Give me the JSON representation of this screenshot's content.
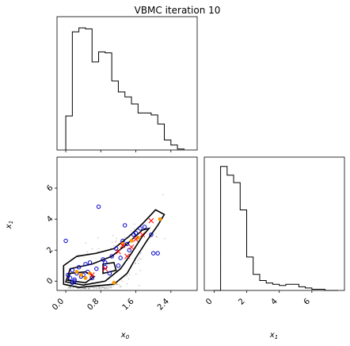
{
  "chart_data": {
    "type": "scatter",
    "title": "VBMC iteration 10",
    "xlabel_x0": "x",
    "xlabel_x0_sub": "0",
    "xlabel_x1": "x",
    "xlabel_x1_sub": "1",
    "ylabel_x1": "x",
    "ylabel_x1_sub": "1",
    "x0_ticks": [
      0.0,
      0.8,
      1.6,
      2.4
    ],
    "x0_tick_labels": [
      "0.0",
      "0.8",
      "1.6",
      "2.4"
    ],
    "x1_ticks": [
      0,
      2,
      4,
      6
    ],
    "x1_tick_labels": [
      "0",
      "2",
      "4",
      "6"
    ],
    "x0_range": [
      -0.2,
      3.0
    ],
    "x1_range": [
      -0.6,
      8.0
    ],
    "hist_x0": {
      "edges": [
        0.0,
        0.15,
        0.3,
        0.45,
        0.6,
        0.75,
        0.9,
        1.05,
        1.2,
        1.35,
        1.5,
        1.65,
        1.8,
        1.95,
        2.1,
        2.25,
        2.4,
        2.55,
        2.7
      ],
      "counts": [
        34,
        118,
        122,
        121,
        88,
        98,
        97,
        69,
        58,
        53,
        46,
        37,
        37,
        35,
        26,
        10,
        5,
        1
      ]
    },
    "hist_x1": {
      "edges": [
        0.0,
        0.4,
        0.8,
        1.2,
        1.6,
        2.0,
        2.4,
        2.8,
        3.2,
        3.6,
        4.0,
        4.4,
        4.8,
        5.2,
        5.6,
        6.0,
        6.4,
        6.8,
        7.2,
        7.6
      ],
      "counts": [
        0,
        100,
        93,
        87,
        65,
        27,
        13,
        8,
        6,
        5,
        4,
        5,
        5,
        3,
        2,
        1,
        1,
        0,
        0,
        0
      ]
    },
    "training_points_x0_x1": [
      [
        0.0,
        2.6
      ],
      [
        0.05,
        0.4
      ],
      [
        0.1,
        0.2
      ],
      [
        0.15,
        0.7
      ],
      [
        0.2,
        0.1
      ],
      [
        0.25,
        0.5
      ],
      [
        0.3,
        0.9
      ],
      [
        0.35,
        0.3
      ],
      [
        0.45,
        1.1
      ],
      [
        0.5,
        0.6
      ],
      [
        0.6,
        0.2
      ],
      [
        0.7,
        0.8
      ],
      [
        0.75,
        4.8
      ],
      [
        0.85,
        1.4
      ],
      [
        0.9,
        0.9
      ],
      [
        1.0,
        0.5
      ],
      [
        1.05,
        1.6
      ],
      [
        1.15,
        2.1
      ],
      [
        1.2,
        1.0
      ],
      [
        1.3,
        2.6
      ],
      [
        1.35,
        3.6
      ],
      [
        1.45,
        2.0
      ],
      [
        1.55,
        3.0
      ],
      [
        1.7,
        3.4
      ],
      [
        1.8,
        3.5
      ],
      [
        1.95,
        3.0
      ],
      [
        2.0,
        1.8
      ],
      [
        2.1,
        1.8
      ],
      [
        0.2,
        0.0
      ],
      [
        0.4,
        0.4
      ],
      [
        0.55,
        1.2
      ],
      [
        0.9,
        1.2
      ],
      [
        1.25,
        1.5
      ],
      [
        1.4,
        2.4
      ],
      [
        1.6,
        3.1
      ],
      [
        0.15,
        -0.1
      ]
    ],
    "active_points_x0_x1": [
      [
        0.35,
        0.4
      ],
      [
        0.45,
        0.2
      ],
      [
        0.55,
        0.5
      ],
      [
        1.1,
        -0.1
      ],
      [
        1.3,
        2.4
      ],
      [
        1.5,
        2.6
      ],
      [
        1.65,
        2.8
      ],
      [
        2.15,
        4.0
      ],
      [
        0.25,
        0.6
      ]
    ],
    "recent_points_x0_x1": [
      [
        1.6,
        2.7
      ],
      [
        1.75,
        3.0
      ],
      [
        1.95,
        3.9
      ],
      [
        1.5,
        2.2
      ],
      [
        1.4,
        1.6
      ],
      [
        0.9,
        0.8
      ],
      [
        0.6,
        0.4
      ],
      [
        1.2,
        1.9
      ],
      [
        1.3,
        2.3
      ]
    ],
    "colors": {
      "training": "#0000cc",
      "active": "#ff9900",
      "recent": "#ff0000",
      "samples": "#000000"
    }
  }
}
